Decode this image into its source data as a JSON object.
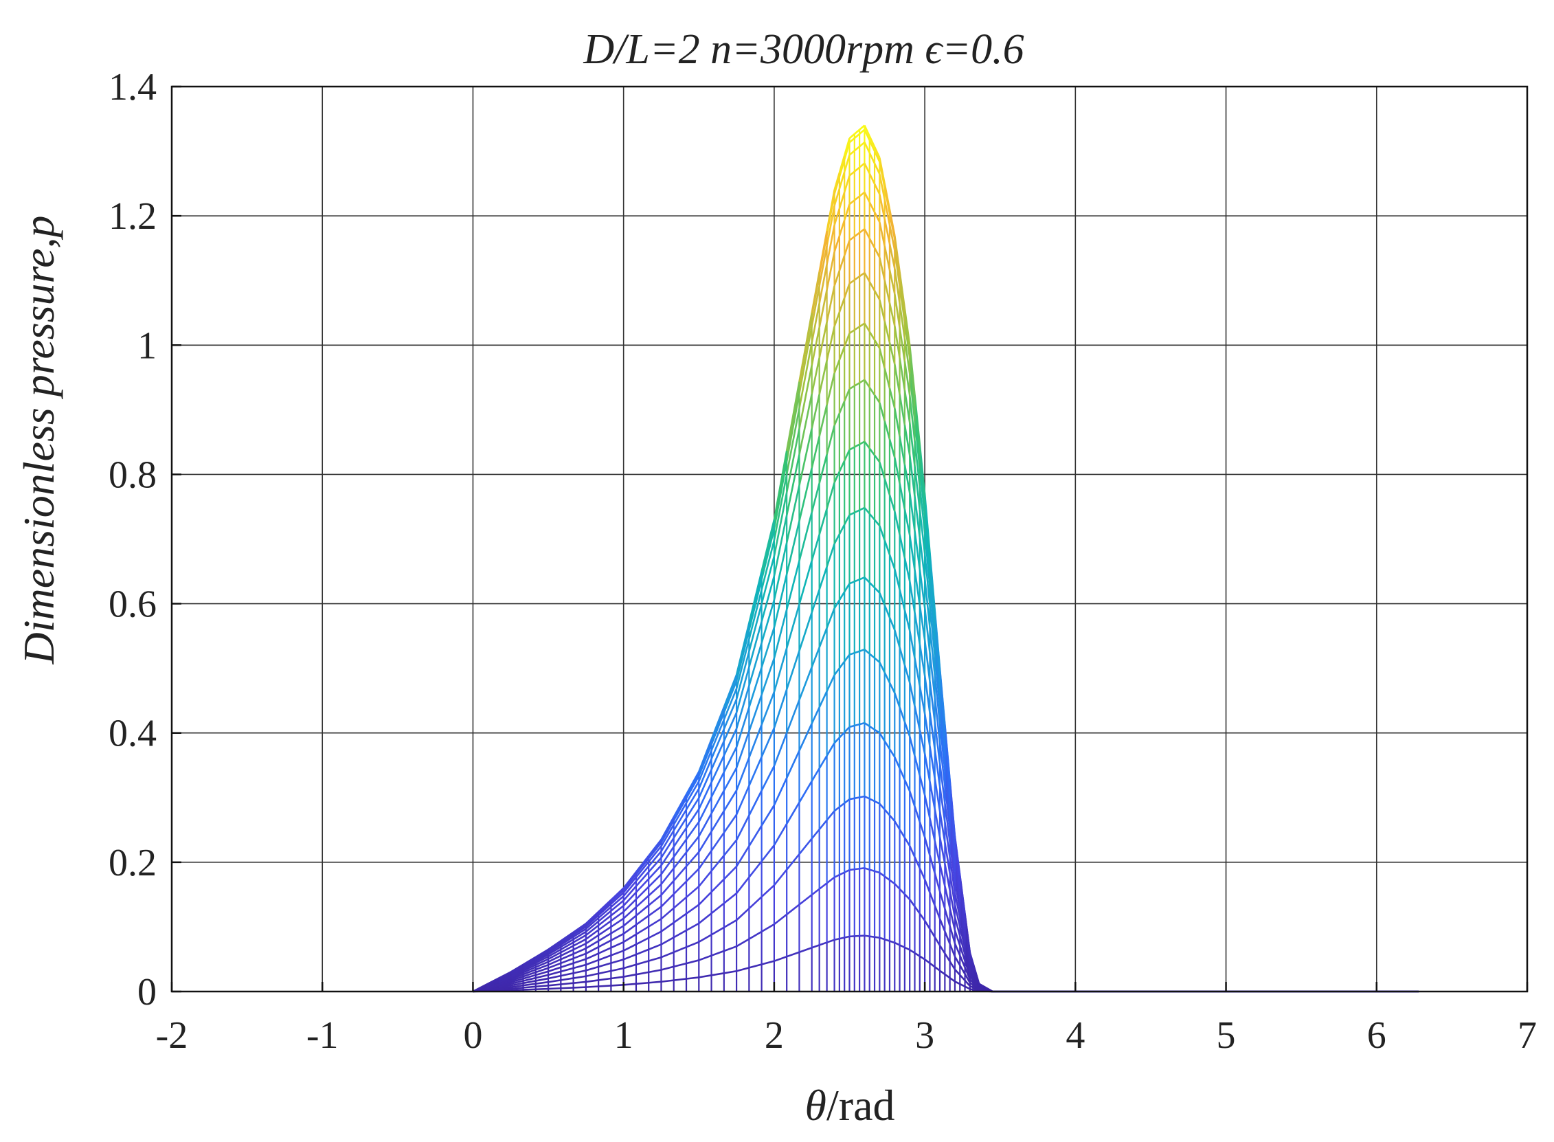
{
  "chart_data": {
    "type": "line",
    "title": "D/L=2 n=3000rpm ϵ=0.6",
    "ylabel": "Dimensionless pressure,p",
    "xlabel_symbol": "θ",
    "xlabel_unit": "/rad",
    "xlim": [
      -2,
      7
    ],
    "ylim": [
      0,
      1.4
    ],
    "xticks": [
      -2,
      -1,
      0,
      1,
      2,
      3,
      4,
      5,
      6,
      7
    ],
    "yticks": [
      0,
      0.2,
      0.4,
      0.6,
      0.8,
      1,
      1.2,
      1.4
    ],
    "xtick_labels": [
      "-2",
      "-1",
      "0",
      "1",
      "2",
      "3",
      "4",
      "5",
      "6",
      "7"
    ],
    "ytick_labels": [
      "0",
      "0.2",
      "0.4",
      "0.6",
      "0.8",
      "1",
      "1.2",
      "1.4"
    ],
    "grid": true,
    "colormap": [
      "#3e26a8",
      "#4743e0",
      "#2d6ff6",
      "#1d9bdc",
      "#0fb6b5",
      "#35c372",
      "#a4c33f",
      "#f3b332",
      "#f9fb15"
    ],
    "pressure_profile": {
      "theta": [
        0.0,
        0.25,
        0.5,
        0.75,
        1.0,
        1.25,
        1.5,
        1.75,
        2.0,
        2.25,
        2.4,
        2.5,
        2.6,
        2.7,
        2.8,
        2.9,
        3.0,
        3.1,
        3.2,
        3.3,
        3.36,
        3.45
      ],
      "p": [
        0.0,
        0.03,
        0.065,
        0.105,
        0.16,
        0.235,
        0.34,
        0.49,
        0.73,
        1.05,
        1.24,
        1.32,
        1.34,
        1.29,
        1.17,
        1.0,
        0.77,
        0.5,
        0.24,
        0.06,
        0.012,
        0.0
      ]
    },
    "zero_line": {
      "x": [
        3.45,
        6.28
      ],
      "y": [
        0,
        0
      ]
    },
    "peak": {
      "theta": 2.6,
      "p": 1.34
    }
  }
}
